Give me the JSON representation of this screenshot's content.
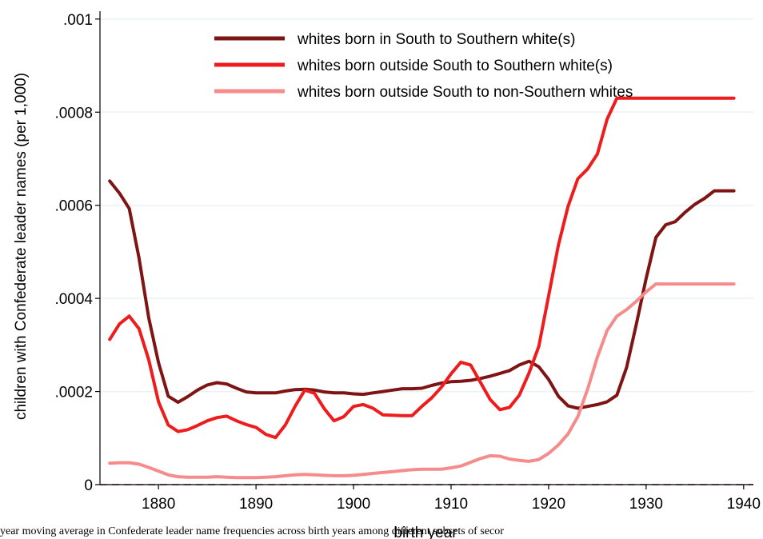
{
  "caption": "year moving average in Confederate leader name frequencies across birth years among different subsets of secor",
  "chart_data": {
    "type": "line",
    "title": "",
    "xlabel": "birth year",
    "ylabel": "children with Confederate leader names (per 1,000)",
    "xlim": [
      1874,
      1941
    ],
    "ylim": [
      0,
      0.00101
    ],
    "x_ticks": [
      1880,
      1890,
      1900,
      1910,
      1920,
      1930,
      1940
    ],
    "x_tick_labels": [
      "1880",
      "1890",
      "1900",
      "1910",
      "1920",
      "1930",
      "1940"
    ],
    "y_ticks": [
      0,
      0.0002,
      0.0004,
      0.0006,
      0.0008,
      0.001
    ],
    "y_tick_labels": [
      "0",
      ".0002",
      ".0004",
      ".0006",
      ".0008",
      ".001"
    ],
    "grid": true,
    "legend_position": "top-center",
    "reference_line": {
      "y": 0,
      "color": "#a0283c",
      "style": "dashed"
    },
    "x": [
      1875,
      1876,
      1877,
      1878,
      1879,
      1880,
      1881,
      1882,
      1883,
      1884,
      1885,
      1886,
      1887,
      1888,
      1889,
      1890,
      1891,
      1892,
      1893,
      1894,
      1895,
      1896,
      1897,
      1898,
      1899,
      1900,
      1901,
      1902,
      1903,
      1904,
      1905,
      1906,
      1907,
      1908,
      1909,
      1910,
      1911,
      1912,
      1913,
      1914,
      1915,
      1916,
      1917,
      1918,
      1919,
      1920,
      1921,
      1922,
      1923,
      1924,
      1925,
      1926,
      1927,
      1928,
      1929,
      1930,
      1931,
      1932,
      1933,
      1934,
      1935,
      1936,
      1937,
      1938,
      1939
    ],
    "series": [
      {
        "name": "whites born in South to Southern white(s)",
        "color": "#7f1414",
        "values": [
          0.000652,
          0.000626,
          0.000593,
          0.000487,
          0.000358,
          0.000262,
          0.00019,
          0.000177,
          0.000189,
          0.000203,
          0.000214,
          0.000219,
          0.000216,
          0.000207,
          0.000199,
          0.000197,
          0.000197,
          0.000197,
          0.000201,
          0.000204,
          0.000205,
          0.000203,
          0.000199,
          0.000197,
          0.000197,
          0.000195,
          0.000194,
          0.000197,
          0.0002,
          0.000203,
          0.000206,
          0.000206,
          0.000207,
          0.000213,
          0.000218,
          0.000221,
          0.000222,
          0.000224,
          0.000228,
          0.000233,
          0.000239,
          0.000245,
          0.000257,
          0.000265,
          0.000253,
          0.000226,
          0.00019,
          0.000169,
          0.000164,
          0.000168,
          0.000172,
          0.000178,
          0.000192,
          0.000252,
          0.000345,
          0.000443,
          0.000531,
          0.000558,
          0.000565,
          0.000585,
          0.000602,
          0.000615,
          0.000631,
          0.000631,
          0.000631
        ]
      },
      {
        "name": "whites born outside South to Southern white(s)",
        "color": "#ee1c1c",
        "values": [
          0.000312,
          0.000345,
          0.000362,
          0.000335,
          0.000268,
          0.000178,
          0.000128,
          0.000114,
          0.000118,
          0.000127,
          0.000137,
          0.000144,
          0.000147,
          0.000137,
          0.000129,
          0.000123,
          0.000108,
          0.000101,
          0.000128,
          0.000168,
          0.000203,
          0.000196,
          0.000163,
          0.000137,
          0.000146,
          0.000168,
          0.000172,
          0.000164,
          0.00015,
          0.000149,
          0.000148,
          0.000148,
          0.000168,
          0.000186,
          0.000209,
          0.000238,
          0.000263,
          0.000257,
          0.00022,
          0.000183,
          0.000161,
          0.000166,
          0.000192,
          0.00024,
          0.000297,
          0.000405,
          0.000514,
          0.000598,
          0.000657,
          0.000678,
          0.00071,
          0.000785,
          0.00083,
          0.00083,
          0.00083,
          0.00083,
          0.00083,
          0.00083,
          0.00083,
          0.00083,
          0.00083,
          0.00083,
          0.00083,
          0.00083,
          0.00083
        ]
      },
      {
        "name": "whites born outside South to non-Southern whites",
        "color": "#f58b8b",
        "values": [
          4.6e-05,
          4.7e-05,
          4.7e-05,
          4.4e-05,
          3.7e-05,
          2.9e-05,
          2.1e-05,
          1.7e-05,
          1.6e-05,
          1.6e-05,
          1.6e-05,
          1.7e-05,
          1.6e-05,
          1.5e-05,
          1.5e-05,
          1.5e-05,
          1.6e-05,
          1.7e-05,
          1.9e-05,
          2.1e-05,
          2.2e-05,
          2.1e-05,
          2e-05,
          1.9e-05,
          1.9e-05,
          2e-05,
          2.2e-05,
          2.4e-05,
          2.6e-05,
          2.8e-05,
          3e-05,
          3.2e-05,
          3.3e-05,
          3.3e-05,
          3.3e-05,
          3.6e-05,
          4e-05,
          4.8e-05,
          5.6e-05,
          6.2e-05,
          6.1e-05,
          5.5e-05,
          5.2e-05,
          5e-05,
          5.4e-05,
          6.7e-05,
          8.5e-05,
          0.000109,
          0.000146,
          0.000205,
          0.000274,
          0.000331,
          0.000362,
          0.000376,
          0.000394,
          0.000414,
          0.000431,
          0.000431,
          0.000431,
          0.000431,
          0.000431,
          0.000431,
          0.000431,
          0.000431,
          0.000431
        ]
      }
    ]
  }
}
